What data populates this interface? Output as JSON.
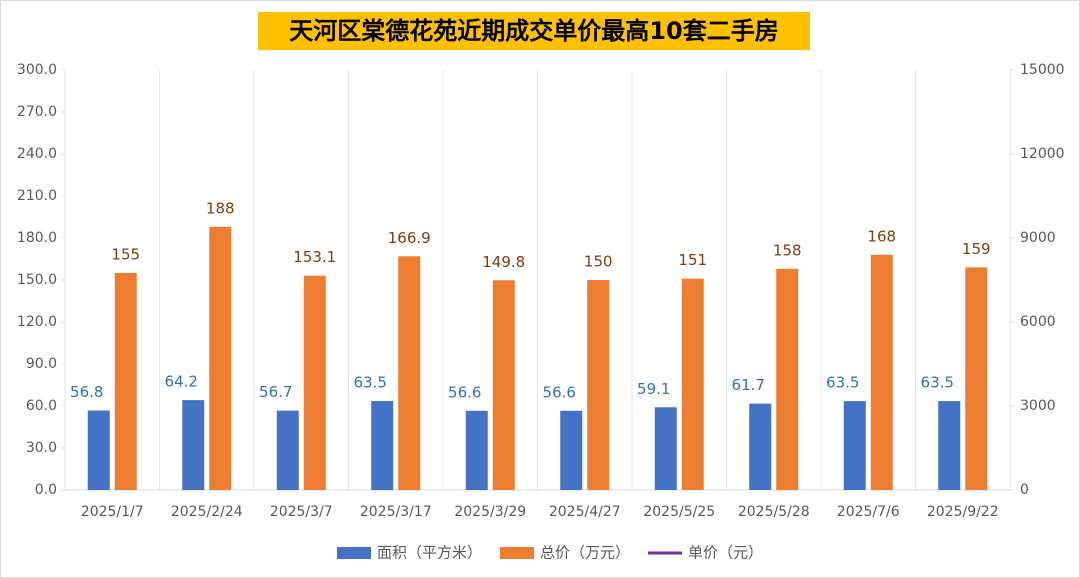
{
  "chart_data": {
    "type": "bar",
    "title": "天河区棠德花苑近期成交单价最高10套二手房",
    "categories": [
      "2025/1/7",
      "2025/2/24",
      "2025/3/7",
      "2025/3/17",
      "2025/3/29",
      "2025/4/27",
      "2025/5/25",
      "2025/5/28",
      "2025/7/6",
      "2025/9/22"
    ],
    "series": [
      {
        "name": "面积（平方米）",
        "color": "#4472c4",
        "label_color": "#2e75b6",
        "values": [
          56.8,
          64.2,
          56.7,
          63.5,
          56.6,
          56.6,
          59.1,
          61.7,
          63.5,
          63.5
        ]
      },
      {
        "name": "总价（万元）",
        "color": "#ed7d31",
        "label_color": "#843c0c",
        "values": [
          155,
          188,
          153.1,
          166.9,
          149.8,
          150,
          151,
          158,
          168,
          159
        ]
      },
      {
        "name": "单价（元）",
        "color": "#7030a0",
        "type": "line",
        "axis": "y2",
        "values": [
          null,
          null,
          null,
          null,
          null,
          null,
          null,
          null,
          null,
          null
        ]
      }
    ],
    "ylim": [
      0,
      300
    ],
    "yticks": [
      {
        "value": 0,
        "label": "0.0"
      },
      {
        "value": 30,
        "label": "30.0"
      },
      {
        "value": 60,
        "label": "60.0"
      },
      {
        "value": 90,
        "label": "90.0"
      },
      {
        "value": 120,
        "label": "120.0"
      },
      {
        "value": 150,
        "label": "150.0"
      },
      {
        "value": 180,
        "label": "180.0"
      },
      {
        "value": 210,
        "label": "210.0"
      },
      {
        "value": 240,
        "label": "240.0"
      },
      {
        "value": 270,
        "label": "270.0"
      },
      {
        "value": 300,
        "label": "300.0"
      }
    ],
    "y2lim": [
      0,
      15000
    ],
    "y2ticks": [
      0,
      3000,
      6000,
      9000,
      12000,
      15000
    ],
    "legend": "bottom"
  }
}
